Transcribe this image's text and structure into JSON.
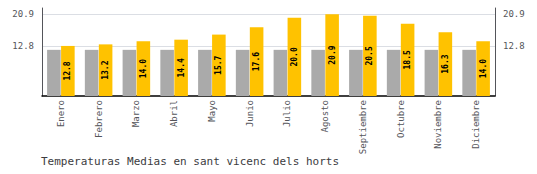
{
  "chart_data": {
    "type": "bar",
    "title": "Temperaturas Medias en sant vicenc dels horts",
    "categories": [
      "Enero",
      "Febrero",
      "Marzo",
      "Abril",
      "Mayo",
      "Junio",
      "Julio",
      "Agosto",
      "Septiembre",
      "Octubre",
      "Noviembre",
      "Diciembre"
    ],
    "series": [
      {
        "color": "#AAAAAA",
        "values": [
          11.8,
          11.8,
          11.8,
          11.8,
          11.8,
          11.8,
          11.8,
          11.8,
          11.8,
          11.8,
          11.8,
          11.8
        ]
      },
      {
        "color": "#FFC200",
        "values": [
          12.8,
          13.2,
          14.0,
          14.4,
          15.7,
          17.6,
          20.0,
          20.9,
          20.5,
          18.5,
          16.3,
          14.0
        ],
        "data_labels": true,
        "value_labels": [
          "12.8",
          "13.2",
          "14.0",
          "14.4",
          "15.7",
          "17.6",
          "20.0",
          "20.9",
          "20.5",
          "18.5",
          "16.3",
          "14.0"
        ]
      }
    ],
    "ylim": [
      0,
      22.5
    ],
    "yticks": [
      12.8,
      20.9
    ],
    "y2lim": [
      0,
      22.5
    ],
    "y2ticks": [
      12.8,
      20.9
    ],
    "grid": true
  }
}
